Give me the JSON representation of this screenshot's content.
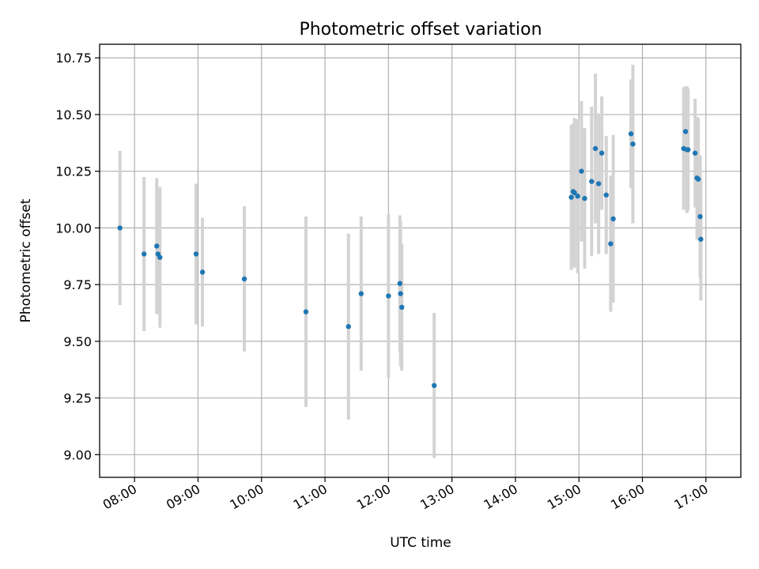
{
  "chart_data": {
    "type": "scatter",
    "title": "Photometric offset variation",
    "xlabel": "UTC time",
    "ylabel": "Photometric offset",
    "xlim_hours": [
      7.45,
      17.55
    ],
    "ylim": [
      8.9,
      10.81
    ],
    "grid": true,
    "colors": {
      "point": "#1f77b4",
      "errorbar": "#d3d3d3"
    },
    "x_ticks": [
      {
        "value": 8,
        "label": "08:00"
      },
      {
        "value": 9,
        "label": "09:00"
      },
      {
        "value": 10,
        "label": "10:00"
      },
      {
        "value": 11,
        "label": "11:00"
      },
      {
        "value": 12,
        "label": "12:00"
      },
      {
        "value": 13,
        "label": "13:00"
      },
      {
        "value": 14,
        "label": "14:00"
      },
      {
        "value": 15,
        "label": "15:00"
      },
      {
        "value": 16,
        "label": "16:00"
      },
      {
        "value": 17,
        "label": "17:00"
      }
    ],
    "y_ticks": [
      {
        "value": 9.0,
        "label": "9.00"
      },
      {
        "value": 9.25,
        "label": "9.25"
      },
      {
        "value": 9.5,
        "label": "9.50"
      },
      {
        "value": 9.75,
        "label": "9.75"
      },
      {
        "value": 10.0,
        "label": "10.00"
      },
      {
        "value": 10.25,
        "label": "10.25"
      },
      {
        "value": 10.5,
        "label": "10.50"
      },
      {
        "value": 10.75,
        "label": "10.75"
      }
    ],
    "points": [
      {
        "x": 7.77,
        "y": 10.0,
        "err": 0.34
      },
      {
        "x": 8.15,
        "y": 9.885,
        "err": 0.34
      },
      {
        "x": 8.35,
        "y": 9.92,
        "err": 0.3
      },
      {
        "x": 8.37,
        "y": 9.885,
        "err": 0.26
      },
      {
        "x": 8.4,
        "y": 9.87,
        "err": 0.31
      },
      {
        "x": 8.97,
        "y": 9.885,
        "err": 0.31
      },
      {
        "x": 9.07,
        "y": 9.805,
        "err": 0.24
      },
      {
        "x": 9.73,
        "y": 9.775,
        "err": 0.32
      },
      {
        "x": 10.7,
        "y": 9.63,
        "err": 0.42
      },
      {
        "x": 11.37,
        "y": 9.565,
        "err": 0.41
      },
      {
        "x": 11.57,
        "y": 9.71,
        "err": 0.34
      },
      {
        "x": 12.0,
        "y": 9.7,
        "err": 0.36
      },
      {
        "x": 12.18,
        "y": 9.755,
        "err": 0.3
      },
      {
        "x": 12.19,
        "y": 9.71,
        "err": 0.32
      },
      {
        "x": 12.21,
        "y": 9.65,
        "err": 0.28
      },
      {
        "x": 12.72,
        "y": 9.305,
        "err": 0.32
      },
      {
        "x": 14.88,
        "y": 10.135,
        "err": 0.32
      },
      {
        "x": 14.91,
        "y": 10.16,
        "err": 0.3
      },
      {
        "x": 14.93,
        "y": 10.155,
        "err": 0.33
      },
      {
        "x": 14.98,
        "y": 10.14,
        "err": 0.34
      },
      {
        "x": 15.04,
        "y": 10.25,
        "err": 0.31
      },
      {
        "x": 15.09,
        "y": 10.13,
        "err": 0.31
      },
      {
        "x": 15.2,
        "y": 10.205,
        "err": 0.33
      },
      {
        "x": 15.26,
        "y": 10.35,
        "err": 0.33
      },
      {
        "x": 15.31,
        "y": 10.195,
        "err": 0.31
      },
      {
        "x": 15.36,
        "y": 10.33,
        "err": 0.25
      },
      {
        "x": 15.43,
        "y": 10.145,
        "err": 0.26
      },
      {
        "x": 15.5,
        "y": 9.93,
        "err": 0.3
      },
      {
        "x": 15.54,
        "y": 10.04,
        "err": 0.37
      },
      {
        "x": 15.82,
        "y": 10.415,
        "err": 0.24
      },
      {
        "x": 15.85,
        "y": 10.37,
        "err": 0.35
      },
      {
        "x": 16.65,
        "y": 10.35,
        "err": 0.27
      },
      {
        "x": 16.68,
        "y": 10.425,
        "err": 0.2
      },
      {
        "x": 16.7,
        "y": 10.345,
        "err": 0.28
      },
      {
        "x": 16.72,
        "y": 10.345,
        "err": 0.27
      },
      {
        "x": 16.83,
        "y": 10.33,
        "err": 0.24
      },
      {
        "x": 16.86,
        "y": 10.22,
        "err": 0.27
      },
      {
        "x": 16.88,
        "y": 10.215,
        "err": 0.27
      },
      {
        "x": 16.91,
        "y": 10.05,
        "err": 0.27
      },
      {
        "x": 16.92,
        "y": 9.95,
        "err": 0.27
      }
    ]
  }
}
